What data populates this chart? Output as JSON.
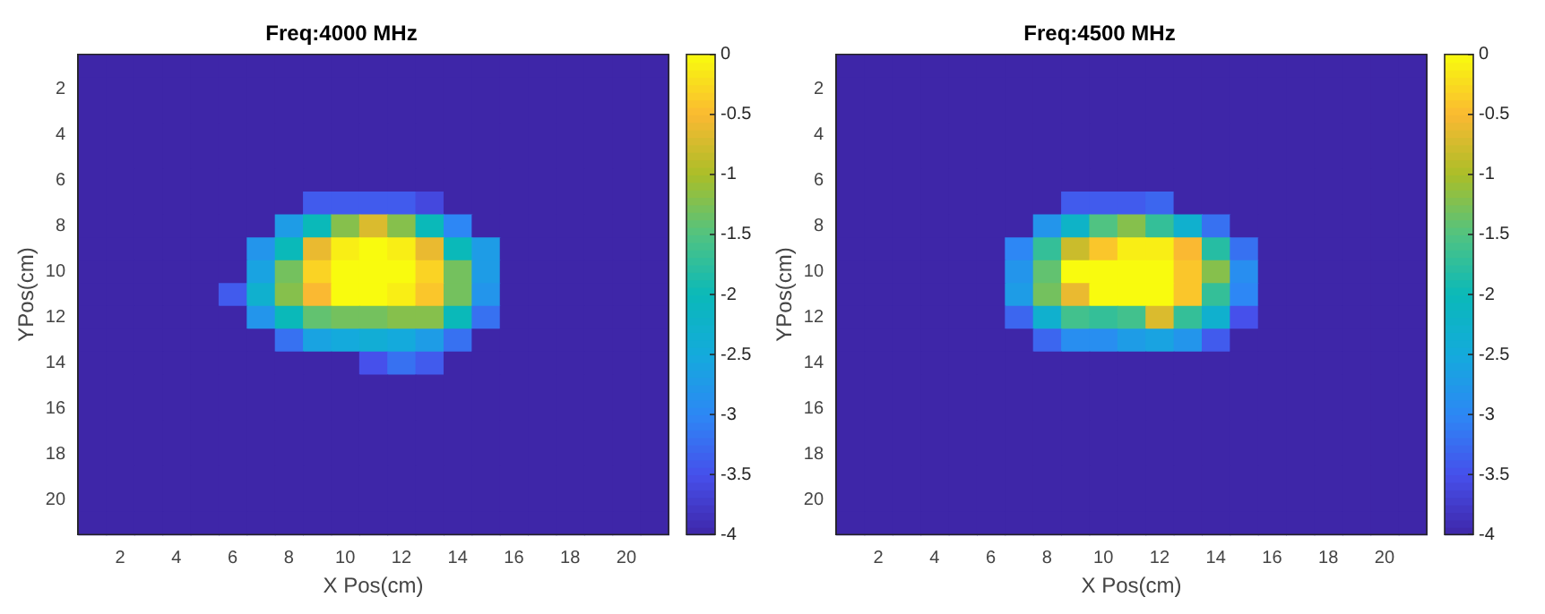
{
  "chart_data": [
    {
      "type": "heatmap",
      "title": "Freq:4000 MHz",
      "xlabel": "X Pos(cm)",
      "ylabel": "YPos(cm)",
      "categories": [
        null,
        "2",
        null,
        "4",
        null,
        "6",
        null,
        "8",
        null,
        "10",
        null,
        "12",
        null,
        "14",
        null,
        "16",
        null,
        "18",
        null,
        "20",
        null
      ],
      "y_categories": [
        null,
        "2",
        null,
        "4",
        null,
        "6",
        null,
        "8",
        null,
        "10",
        null,
        "12",
        null,
        "14",
        null,
        "16",
        null,
        "18",
        null,
        "20",
        null
      ],
      "clim": [
        -4,
        0
      ],
      "cticks": [
        0,
        -0.5,
        -1,
        -1.5,
        -2,
        -2.5,
        -3,
        -3.5,
        -4
      ],
      "cells": [
        [
          -4,
          -4,
          -4,
          -4,
          -4,
          -4,
          -4,
          -4,
          -4,
          -4,
          -4,
          -4,
          -4,
          -4,
          -4,
          -4,
          -4,
          -4,
          -4,
          -4,
          -4
        ],
        [
          -4,
          -4,
          -4,
          -4,
          -4,
          -4,
          -4,
          -4,
          -4,
          -4,
          -4,
          -4,
          -4,
          -4,
          -4,
          -4,
          -4,
          -4,
          -4,
          -4,
          -4
        ],
        [
          -4,
          -4,
          -4,
          -4,
          -4,
          -4,
          -4,
          -4,
          -4,
          -4,
          -4,
          -4,
          -4,
          -4,
          -4,
          -4,
          -4,
          -4,
          -4,
          -4,
          -4
        ],
        [
          -4,
          -4,
          -4,
          -4,
          -4,
          -4,
          -4,
          -4,
          -4,
          -4,
          -4,
          -4,
          -4,
          -4,
          -4,
          -4,
          -4,
          -4,
          -4,
          -4,
          -4
        ],
        [
          -4,
          -4,
          -4,
          -4,
          -4,
          -4,
          -4,
          -4,
          -4,
          -4,
          -4,
          -4,
          -4,
          -4,
          -4,
          -4,
          -4,
          -4,
          -4,
          -4,
          -4
        ],
        [
          -4,
          -4,
          -4,
          -4,
          -4,
          -4,
          -4,
          -4,
          -4,
          -4,
          -4,
          -4,
          -4,
          -4,
          -4,
          -4,
          -4,
          -4,
          -4,
          -4,
          -4
        ],
        [
          -4,
          -4,
          -4,
          -4,
          -4,
          -4,
          -4,
          -4,
          -3.4,
          -3.4,
          -3.4,
          -3.4,
          -3.6,
          -4,
          -4,
          -4,
          -4,
          -4,
          -4,
          -4,
          -4
        ],
        [
          -4,
          -4,
          -4,
          -4,
          -4,
          -4,
          -4,
          -2.7,
          -2.0,
          -1.2,
          -0.7,
          -1.2,
          -2.0,
          -3.0,
          -4,
          -4,
          -4,
          -4,
          -4,
          -4,
          -4
        ],
        [
          -4,
          -4,
          -4,
          -4,
          -4,
          -4,
          -2.8,
          -2.0,
          -0.6,
          -0.1,
          0,
          -0.1,
          -0.6,
          -2.0,
          -2.7,
          -4,
          -4,
          -4,
          -4,
          -4,
          -4
        ],
        [
          -4,
          -4,
          -4,
          -4,
          -4,
          -4,
          -2.6,
          -1.3,
          -0.3,
          0,
          0,
          0,
          -0.3,
          -1.3,
          -2.7,
          -4,
          -4,
          -4,
          -4,
          -4,
          -4
        ],
        [
          -4,
          -4,
          -4,
          -4,
          -4,
          -3.4,
          -2.3,
          -1.2,
          -0.5,
          0,
          0,
          -0.1,
          -0.4,
          -1.3,
          -2.8,
          -4,
          -4,
          -4,
          -4,
          -4,
          -4
        ],
        [
          -4,
          -4,
          -4,
          -4,
          -4,
          -4,
          -2.8,
          -2.0,
          -1.4,
          -1.3,
          -1.3,
          -1.2,
          -1.2,
          -2.0,
          -3.2,
          -4,
          -4,
          -4,
          -4,
          -4,
          -4
        ],
        [
          -4,
          -4,
          -4,
          -4,
          -4,
          -4,
          -4,
          -3.2,
          -2.6,
          -2.5,
          -2.4,
          -2.5,
          -2.7,
          -3.2,
          -4,
          -4,
          -4,
          -4,
          -4,
          -4,
          -4
        ],
        [
          -4,
          -4,
          -4,
          -4,
          -4,
          -4,
          -4,
          -4,
          -4,
          -4,
          -3.5,
          -3.2,
          -3.4,
          -4,
          -4,
          -4,
          -4,
          -4,
          -4,
          -4,
          -4
        ],
        [
          -4,
          -4,
          -4,
          -4,
          -4,
          -4,
          -4,
          -4,
          -4,
          -4,
          -4,
          -4,
          -4,
          -4,
          -4,
          -4,
          -4,
          -4,
          -4,
          -4,
          -4
        ],
        [
          -4,
          -4,
          -4,
          -4,
          -4,
          -4,
          -4,
          -4,
          -4,
          -4,
          -4,
          -4,
          -4,
          -4,
          -4,
          -4,
          -4,
          -4,
          -4,
          -4,
          -4
        ],
        [
          -4,
          -4,
          -4,
          -4,
          -4,
          -4,
          -4,
          -4,
          -4,
          -4,
          -4,
          -4,
          -4,
          -4,
          -4,
          -4,
          -4,
          -4,
          -4,
          -4,
          -4
        ],
        [
          -4,
          -4,
          -4,
          -4,
          -4,
          -4,
          -4,
          -4,
          -4,
          -4,
          -4,
          -4,
          -4,
          -4,
          -4,
          -4,
          -4,
          -4,
          -4,
          -4,
          -4
        ],
        [
          -4,
          -4,
          -4,
          -4,
          -4,
          -4,
          -4,
          -4,
          -4,
          -4,
          -4,
          -4,
          -4,
          -4,
          -4,
          -4,
          -4,
          -4,
          -4,
          -4,
          -4
        ],
        [
          -4,
          -4,
          -4,
          -4,
          -4,
          -4,
          -4,
          -4,
          -4,
          -4,
          -4,
          -4,
          -4,
          -4,
          -4,
          -4,
          -4,
          -4,
          -4,
          -4,
          -4
        ],
        [
          -4,
          -4,
          -4,
          -4,
          -4,
          -4,
          -4,
          -4,
          -4,
          -4,
          -4,
          -4,
          -4,
          -4,
          -4,
          -4,
          -4,
          -4,
          -4,
          -4,
          -4
        ]
      ]
    },
    {
      "type": "heatmap",
      "title": "Freq:4500 MHz",
      "xlabel": "X Pos(cm)",
      "ylabel": "YPos(cm)",
      "categories": [
        null,
        "2",
        null,
        "4",
        null,
        "6",
        null,
        "8",
        null,
        "10",
        null,
        "12",
        null,
        "14",
        null,
        "16",
        null,
        "18",
        null,
        "20",
        null
      ],
      "y_categories": [
        null,
        "2",
        null,
        "4",
        null,
        "6",
        null,
        "8",
        null,
        "10",
        null,
        "12",
        null,
        "14",
        null,
        "16",
        null,
        "18",
        null,
        "20",
        null
      ],
      "clim": [
        -4,
        0
      ],
      "cticks": [
        0,
        -0.5,
        -1,
        -1.5,
        -2,
        -2.5,
        -3,
        -3.5,
        -4
      ],
      "cells": [
        [
          -4,
          -4,
          -4,
          -4,
          -4,
          -4,
          -4,
          -4,
          -4,
          -4,
          -4,
          -4,
          -4,
          -4,
          -4,
          -4,
          -4,
          -4,
          -4,
          -4,
          -4
        ],
        [
          -4,
          -4,
          -4,
          -4,
          -4,
          -4,
          -4,
          -4,
          -4,
          -4,
          -4,
          -4,
          -4,
          -4,
          -4,
          -4,
          -4,
          -4,
          -4,
          -4,
          -4
        ],
        [
          -4,
          -4,
          -4,
          -4,
          -4,
          -4,
          -4,
          -4,
          -4,
          -4,
          -4,
          -4,
          -4,
          -4,
          -4,
          -4,
          -4,
          -4,
          -4,
          -4,
          -4
        ],
        [
          -4,
          -4,
          -4,
          -4,
          -4,
          -4,
          -4,
          -4,
          -4,
          -4,
          -4,
          -4,
          -4,
          -4,
          -4,
          -4,
          -4,
          -4,
          -4,
          -4,
          -4
        ],
        [
          -4,
          -4,
          -4,
          -4,
          -4,
          -4,
          -4,
          -4,
          -4,
          -4,
          -4,
          -4,
          -4,
          -4,
          -4,
          -4,
          -4,
          -4,
          -4,
          -4,
          -4
        ],
        [
          -4,
          -4,
          -4,
          -4,
          -4,
          -4,
          -4,
          -4,
          -4,
          -4,
          -4,
          -4,
          -4,
          -4,
          -4,
          -4,
          -4,
          -4,
          -4,
          -4,
          -4
        ],
        [
          -4,
          -4,
          -4,
          -4,
          -4,
          -4,
          -4,
          -4,
          -3.4,
          -3.4,
          -3.4,
          -3.3,
          -4,
          -4,
          -4,
          -4,
          -4,
          -4,
          -4,
          -4,
          -4
        ],
        [
          -4,
          -4,
          -4,
          -4,
          -4,
          -4,
          -4,
          -2.8,
          -2.2,
          -1.5,
          -1.2,
          -1.7,
          -2.3,
          -3.2,
          -4,
          -4,
          -4,
          -4,
          -4,
          -4,
          -4
        ],
        [
          -4,
          -4,
          -4,
          -4,
          -4,
          -4,
          -3.0,
          -1.7,
          -0.8,
          -0.4,
          -0.1,
          -0.1,
          -0.5,
          -1.8,
          -3.2,
          -4,
          -4,
          -4,
          -4,
          -4,
          -4
        ],
        [
          -4,
          -4,
          -4,
          -4,
          -4,
          -4,
          -2.8,
          -1.4,
          0,
          0,
          0,
          0,
          -0.4,
          -1.2,
          -2.9,
          -4,
          -4,
          -4,
          -4,
          -4,
          -4
        ],
        [
          -4,
          -4,
          -4,
          -4,
          -4,
          -4,
          -2.7,
          -1.3,
          -0.6,
          0,
          0,
          0,
          -0.4,
          -1.7,
          -3.0,
          -4,
          -4,
          -4,
          -4,
          -4,
          -4
        ],
        [
          -4,
          -4,
          -4,
          -4,
          -4,
          -4,
          -3.3,
          -2.3,
          -1.6,
          -1.7,
          -1.6,
          -0.7,
          -1.7,
          -2.3,
          -3.5,
          -4,
          -4,
          -4,
          -4,
          -4,
          -4
        ],
        [
          -4,
          -4,
          -4,
          -4,
          -4,
          -4,
          -4,
          -3.3,
          -2.9,
          -2.9,
          -2.7,
          -2.6,
          -2.8,
          -3.4,
          -4,
          -4,
          -4,
          -4,
          -4,
          -4,
          -4
        ],
        [
          -4,
          -4,
          -4,
          -4,
          -4,
          -4,
          -4,
          -4,
          -4,
          -4,
          -4,
          -4,
          -4,
          -4,
          -4,
          -4,
          -4,
          -4,
          -4,
          -4,
          -4
        ],
        [
          -4,
          -4,
          -4,
          -4,
          -4,
          -4,
          -4,
          -4,
          -4,
          -4,
          -4,
          -4,
          -4,
          -4,
          -4,
          -4,
          -4,
          -4,
          -4,
          -4,
          -4
        ],
        [
          -4,
          -4,
          -4,
          -4,
          -4,
          -4,
          -4,
          -4,
          -4,
          -4,
          -4,
          -4,
          -4,
          -4,
          -4,
          -4,
          -4,
          -4,
          -4,
          -4,
          -4
        ],
        [
          -4,
          -4,
          -4,
          -4,
          -4,
          -4,
          -4,
          -4,
          -4,
          -4,
          -4,
          -4,
          -4,
          -4,
          -4,
          -4,
          -4,
          -4,
          -4,
          -4,
          -4
        ],
        [
          -4,
          -4,
          -4,
          -4,
          -4,
          -4,
          -4,
          -4,
          -4,
          -4,
          -4,
          -4,
          -4,
          -4,
          -4,
          -4,
          -4,
          -4,
          -4,
          -4,
          -4
        ],
        [
          -4,
          -4,
          -4,
          -4,
          -4,
          -4,
          -4,
          -4,
          -4,
          -4,
          -4,
          -4,
          -4,
          -4,
          -4,
          -4,
          -4,
          -4,
          -4,
          -4,
          -4
        ],
        [
          -4,
          -4,
          -4,
          -4,
          -4,
          -4,
          -4,
          -4,
          -4,
          -4,
          -4,
          -4,
          -4,
          -4,
          -4,
          -4,
          -4,
          -4,
          -4,
          -4,
          -4
        ],
        [
          -4,
          -4,
          -4,
          -4,
          -4,
          -4,
          -4,
          -4,
          -4,
          -4,
          -4,
          -4,
          -4,
          -4,
          -4,
          -4,
          -4,
          -4,
          -4,
          -4,
          -4
        ]
      ]
    }
  ]
}
